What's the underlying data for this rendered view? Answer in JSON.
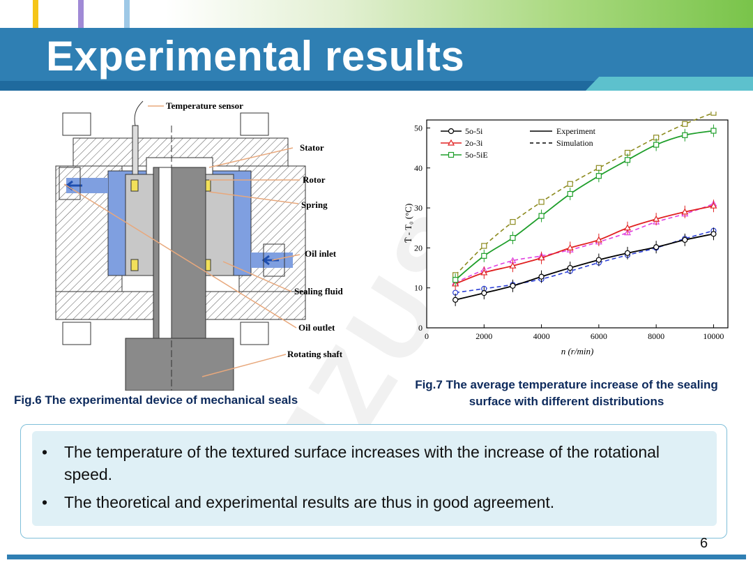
{
  "slide": {
    "title": "Experimental results",
    "watermark": "JZUS-A",
    "page_number": "6"
  },
  "fig6": {
    "labels": {
      "temperature_sensor": "Temperature sensor",
      "stator": "Stator",
      "rotor": "Rotor",
      "spring": "Spring",
      "oil_inlet": "Oil inlet",
      "sealing_fluid": "Sealing fluid",
      "oil_outlet": "Oil outlet",
      "rotating_shaft": "Rotating shaft"
    },
    "caption": "Fig.6 The experimental device of mechanical seals"
  },
  "fig7": {
    "caption": "Fig.7 The average temperature increase of the sealing surface with different distributions"
  },
  "chart_data": {
    "type": "line",
    "xlabel": "n (r/min)",
    "ylabel": "T̄ - T₀ (°C)",
    "xlim": [
      0,
      10500
    ],
    "ylim": [
      0,
      52
    ],
    "xticks": [
      0,
      2000,
      4000,
      6000,
      8000,
      10000
    ],
    "yticks": [
      0,
      10,
      20,
      30,
      40,
      50
    ],
    "legend_placement": "top-left",
    "legend_style": [
      {
        "label": "Experiment",
        "dash": "solid"
      },
      {
        "label": "Simulation",
        "dash": "dashed"
      }
    ],
    "x": [
      1000,
      2000,
      3000,
      4000,
      5000,
      6000,
      7000,
      8000,
      9000,
      10000
    ],
    "series": [
      {
        "name": "5o-5i",
        "color": "#000000",
        "marker": "circle",
        "experiment": [
          7,
          8.7,
          10.5,
          12.8,
          15,
          17,
          18.7,
          20.2,
          22,
          23.5
        ],
        "simulation": [
          8.8,
          9.8,
          10.8,
          12.2,
          14.2,
          16.3,
          18.2,
          20,
          22.3,
          24.3
        ]
      },
      {
        "name": "2o-3i",
        "color": "#e02020",
        "marker": "triangle",
        "experiment": [
          11,
          13.8,
          15.5,
          17.5,
          20,
          22,
          25,
          27.2,
          29,
          30.5
        ],
        "simulation": [
          11.3,
          14.5,
          16.8,
          18,
          19.5,
          21.5,
          23.8,
          26.5,
          28.5,
          31
        ]
      },
      {
        "name": "5o-5iE",
        "color": "#1e9e2a",
        "marker": "square",
        "experiment": [
          12,
          18,
          22.5,
          28,
          33.5,
          38,
          42,
          45.8,
          48.2,
          49.3
        ],
        "simulation": [
          13.2,
          20.5,
          26.5,
          31.5,
          36,
          40,
          43.8,
          47.6,
          51,
          53.8
        ]
      },
      {
        "name": "5o-5i (sim)",
        "color": "#2b3fd6",
        "marker": "circle",
        "role": "simulation-5o-5i"
      },
      {
        "name": "2o-3i (sim)",
        "color": "#e040e0",
        "marker": "triangle",
        "role": "simulation-2o-3i"
      },
      {
        "name": "5o-5iE (sim)",
        "color": "#8c8a1e",
        "marker": "square",
        "role": "simulation-5o-5iE"
      }
    ]
  },
  "notes": {
    "bullets": [
      "The temperature of the textured surface increases with the increase of the rotational speed.",
      "The theoretical and experimental results are thus in good agreement."
    ],
    "bullet_symbol": "•"
  }
}
